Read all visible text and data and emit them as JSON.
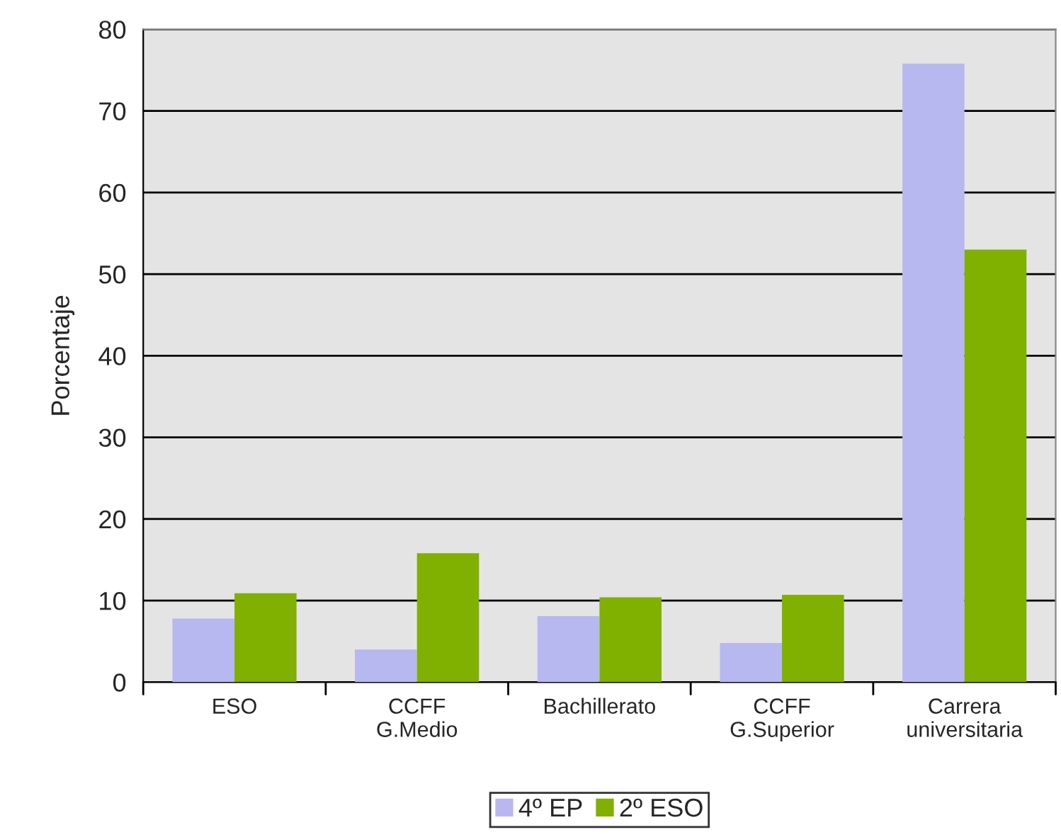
{
  "chart_data": {
    "type": "bar",
    "ylabel": "Porcentaje",
    "categories": [
      "ESO",
      "CCFF\nG.Medio",
      "Bachillerato",
      "CCFF\nG.Superior",
      "Carrera\nuniversitaria"
    ],
    "series": [
      {
        "name": "4º EP",
        "color": "#b8b8f0",
        "values": [
          7.8,
          4.0,
          8.1,
          4.8,
          75.8
        ]
      },
      {
        "name": "2º ESO",
        "color": "#80b000",
        "values": [
          10.9,
          15.8,
          10.4,
          10.7,
          53.0
        ]
      }
    ],
    "ylim": [
      0,
      80
    ],
    "yticks": [
      0,
      10,
      20,
      30,
      40,
      50,
      60,
      70,
      80
    ],
    "grid": "y",
    "legend": "bottom"
  }
}
